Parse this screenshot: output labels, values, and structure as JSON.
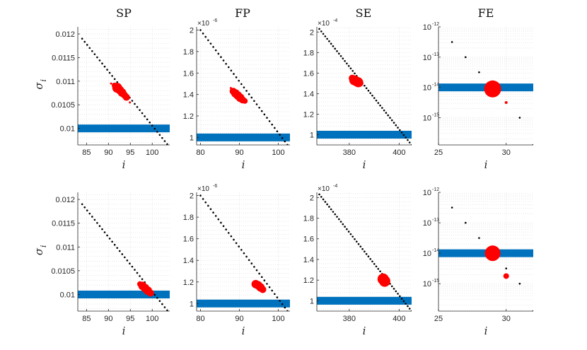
{
  "colors": {
    "threshold": "#0072BD",
    "highlight": "#FF0000",
    "sequence": "#000000",
    "grid": "#d9d9d9",
    "axis": "#262626"
  },
  "column_titles": [
    "SP",
    "FP",
    "SE",
    "FE"
  ],
  "xlabel": "i",
  "ylabel": "σ",
  "ylabel_sub": "i",
  "multipliers": {
    "FP": {
      "base": "×10",
      "exp": "-6"
    },
    "SE": {
      "base": "×10",
      "exp": "-4"
    }
  },
  "chart_data": [
    {
      "id": "row1-SP",
      "type": "scatter",
      "title": "SP",
      "yscale": "linear",
      "xlim": [
        83,
        104
      ],
      "ylim": [
        0.00965,
        0.01215
      ],
      "yscale_factor": 1,
      "xticks": [
        85,
        90,
        95,
        100
      ],
      "xtick_labels": [
        "85",
        "90",
        "95",
        "100"
      ],
      "yticks": [
        0.01,
        0.0105,
        0.011,
        0.0115,
        0.012
      ],
      "ytick_labels": [
        "0.01",
        "0.0105",
        "0.011",
        "0.0115",
        "0.012"
      ],
      "xlabel": "i",
      "show_ylabel": true,
      "diagonal": {
        "x_start": 84,
        "y_start": 0.0119,
        "x_end": 104,
        "y_end": 0.0096,
        "count": 36
      },
      "threshold": {
        "y": 0.01,
        "x_start": 83,
        "x_end": 104
      },
      "highlights": [
        {
          "x": 90.6,
          "y": 0.01095,
          "size": 1.5
        },
        {
          "x": 91.4,
          "y": 0.01091,
          "size": 4
        },
        {
          "x": 92.0,
          "y": 0.01086,
          "size": 7
        },
        {
          "x": 92.6,
          "y": 0.01081,
          "size": 6
        },
        {
          "x": 93.1,
          "y": 0.01076,
          "size": 6
        },
        {
          "x": 93.6,
          "y": 0.01071,
          "size": 5
        },
        {
          "x": 94.1,
          "y": 0.01066,
          "size": 5
        },
        {
          "x": 94.9,
          "y": 0.01055,
          "size": 1.5
        }
      ]
    },
    {
      "id": "row1-FP",
      "type": "scatter",
      "title": "FP",
      "yscale": "linear",
      "xlim": [
        79,
        103
      ],
      "ylim": [
        0.93,
        2.03
      ],
      "yscale_factor": 1e-06,
      "xticks": [
        80,
        90,
        100
      ],
      "xtick_labels": [
        "80",
        "90",
        "100"
      ],
      "yticks": [
        1,
        1.2,
        1.4,
        1.6,
        1.8,
        2
      ],
      "ytick_labels": [
        "1",
        "1.2",
        "1.4",
        "1.6",
        "1.8",
        "2"
      ],
      "xlabel": "i",
      "show_ylabel": false,
      "multiplier": "FP",
      "diagonal": {
        "x_start": 80,
        "y_start": 2.0,
        "x_end": 103,
        "y_end": 0.9,
        "count": 36
      },
      "threshold": {
        "y": 1.0,
        "x_start": 79,
        "x_end": 103
      },
      "highlights": [
        {
          "x": 87.8,
          "y": 1.46,
          "size": 1.5
        },
        {
          "x": 88.4,
          "y": 1.43,
          "size": 5
        },
        {
          "x": 89.0,
          "y": 1.41,
          "size": 6
        },
        {
          "x": 89.6,
          "y": 1.39,
          "size": 6
        },
        {
          "x": 90.2,
          "y": 1.37,
          "size": 6
        },
        {
          "x": 90.8,
          "y": 1.35,
          "size": 5
        },
        {
          "x": 91.4,
          "y": 1.34,
          "size": 4
        }
      ]
    },
    {
      "id": "row1-SE",
      "type": "scatter",
      "title": "SE",
      "yscale": "linear",
      "xlim": [
        367,
        405
      ],
      "ylim": [
        0.9,
        2.05
      ],
      "yscale_factor": 0.0001,
      "xticks": [
        380,
        400
      ],
      "xtick_labels": [
        "380",
        "400"
      ],
      "yticks": [
        1,
        1.2,
        1.4,
        1.6,
        1.8,
        2
      ],
      "ytick_labels": [
        "1",
        "1.2",
        "1.4",
        "1.6",
        "1.8",
        "2"
      ],
      "xlabel": "i",
      "show_ylabel": false,
      "multiplier": "SE",
      "diagonal": {
        "x_start": 368,
        "y_start": 2.03,
        "x_end": 405,
        "y_end": 0.9,
        "count": 48
      },
      "threshold": {
        "y": 1.0,
        "x_start": 367,
        "x_end": 405
      },
      "highlights": [
        {
          "x": 381.2,
          "y": 1.55,
          "size": 5
        },
        {
          "x": 382.0,
          "y": 1.53,
          "size": 7
        },
        {
          "x": 382.8,
          "y": 1.52,
          "size": 7
        },
        {
          "x": 383.6,
          "y": 1.51,
          "size": 7
        },
        {
          "x": 384.2,
          "y": 1.5,
          "size": 5
        }
      ]
    },
    {
      "id": "row1-FE",
      "type": "scatter",
      "title": "FE",
      "yscale": "log",
      "xlim": [
        25,
        32
      ],
      "ylim": [
        -15.9,
        -12
      ],
      "yscale_factor": 1,
      "xticks": [
        25,
        30
      ],
      "xtick_labels": [
        "25",
        "30"
      ],
      "yticks": [
        -15,
        -14,
        -13,
        -12
      ],
      "ytick_labels": [
        "10",
        "10",
        "10",
        "10"
      ],
      "ytick_exps": [
        "-15",
        "-14",
        "-13",
        "-12"
      ],
      "xlabel": "i",
      "show_ylabel": false,
      "points": [
        {
          "x": 26,
          "y": -12.5
        },
        {
          "x": 27,
          "y": -13.0
        },
        {
          "x": 28,
          "y": -13.5
        },
        {
          "x": 29,
          "y": -14.0
        },
        {
          "x": 30,
          "y": -14.5
        },
        {
          "x": 31,
          "y": -15.0
        },
        {
          "x": 32,
          "y": -15.9
        }
      ],
      "threshold": {
        "y": -14.0,
        "x_start": 25,
        "x_end": 32
      },
      "highlights": [
        {
          "x": 29,
          "y": -14.05,
          "size": 12
        },
        {
          "x": 30,
          "y": -14.5,
          "size": 2
        }
      ]
    },
    {
      "id": "row2-SP",
      "type": "scatter",
      "title": "SP",
      "yscale": "linear",
      "xlim": [
        83,
        104
      ],
      "ylim": [
        0.00965,
        0.01215
      ],
      "yscale_factor": 1,
      "xticks": [
        85,
        90,
        95,
        100
      ],
      "xtick_labels": [
        "85",
        "90",
        "95",
        "100"
      ],
      "yticks": [
        0.01,
        0.0105,
        0.011,
        0.0115,
        0.012
      ],
      "ytick_labels": [
        "0.01",
        "0.0105",
        "0.011",
        "0.0115",
        "0.012"
      ],
      "xlabel": "i",
      "show_ylabel": true,
      "diagonal": {
        "x_start": 84,
        "y_start": 0.0119,
        "x_end": 104,
        "y_end": 0.0096,
        "count": 36
      },
      "threshold": {
        "y": 0.01,
        "x_start": 83,
        "x_end": 104
      },
      "highlights": [
        {
          "x": 97.2,
          "y": 0.01022,
          "size": 4
        },
        {
          "x": 97.8,
          "y": 0.01018,
          "size": 6
        },
        {
          "x": 98.4,
          "y": 0.01013,
          "size": 6
        },
        {
          "x": 99.0,
          "y": 0.01008,
          "size": 6
        },
        {
          "x": 99.6,
          "y": 0.01003,
          "size": 5
        }
      ]
    },
    {
      "id": "row2-FP",
      "type": "scatter",
      "title": "FP",
      "yscale": "linear",
      "xlim": [
        79,
        103
      ],
      "ylim": [
        0.93,
        2.03
      ],
      "yscale_factor": 1e-06,
      "xticks": [
        80,
        90,
        100
      ],
      "xtick_labels": [
        "80",
        "90",
        "100"
      ],
      "yticks": [
        1,
        1.2,
        1.4,
        1.6,
        1.8,
        2
      ],
      "ytick_labels": [
        "1",
        "1.2",
        "1.4",
        "1.6",
        "1.8",
        "2"
      ],
      "xlabel": "i",
      "show_ylabel": false,
      "multiplier": "FP",
      "diagonal": {
        "x_start": 80,
        "y_start": 2.0,
        "x_end": 103,
        "y_end": 0.9,
        "count": 36
      },
      "threshold": {
        "y": 1.0,
        "x_start": 79,
        "x_end": 103
      },
      "highlights": [
        {
          "x": 94.2,
          "y": 1.18,
          "size": 6
        },
        {
          "x": 94.8,
          "y": 1.17,
          "size": 6
        },
        {
          "x": 95.4,
          "y": 1.15,
          "size": 6
        },
        {
          "x": 96.0,
          "y": 1.13,
          "size": 5
        }
      ]
    },
    {
      "id": "row2-SE",
      "type": "scatter",
      "title": "SE",
      "yscale": "linear",
      "xlim": [
        367,
        405
      ],
      "ylim": [
        0.9,
        2.05
      ],
      "yscale_factor": 0.0001,
      "xticks": [
        380,
        400
      ],
      "xtick_labels": [
        "380",
        "400"
      ],
      "yticks": [
        1,
        1.2,
        1.4,
        1.6,
        1.8,
        2
      ],
      "ytick_labels": [
        "1",
        "1.2",
        "1.4",
        "1.6",
        "1.8",
        "2"
      ],
      "xlabel": "i",
      "show_ylabel": false,
      "multiplier": "SE",
      "diagonal": {
        "x_start": 368,
        "y_start": 2.03,
        "x_end": 405,
        "y_end": 0.9,
        "count": 48
      },
      "threshold": {
        "y": 1.0,
        "x_start": 367,
        "x_end": 405
      },
      "highlights": [
        {
          "x": 393.6,
          "y": 1.21,
          "size": 8
        },
        {
          "x": 394.2,
          "y": 1.19,
          "size": 8
        }
      ]
    },
    {
      "id": "row2-FE",
      "type": "scatter",
      "title": "FE",
      "yscale": "log",
      "xlim": [
        25,
        32
      ],
      "ylim": [
        -15.9,
        -12
      ],
      "yscale_factor": 1,
      "xticks": [
        25,
        30
      ],
      "xtick_labels": [
        "25",
        "30"
      ],
      "yticks": [
        -15,
        -14,
        -13,
        -12
      ],
      "ytick_labels": [
        "10",
        "10",
        "10",
        "10"
      ],
      "ytick_exps": [
        "-15",
        "-14",
        "-13",
        "-12"
      ],
      "xlabel": "i",
      "show_ylabel": false,
      "points": [
        {
          "x": 26,
          "y": -12.5
        },
        {
          "x": 27,
          "y": -13.0
        },
        {
          "x": 28,
          "y": -13.5
        },
        {
          "x": 29,
          "y": -14.0
        },
        {
          "x": 30,
          "y": -14.5
        },
        {
          "x": 31,
          "y": -15.0
        },
        {
          "x": 32,
          "y": -15.9
        }
      ],
      "threshold": {
        "y": -14.0,
        "x_start": 25,
        "x_end": 32
      },
      "highlights": [
        {
          "x": 29,
          "y": -14.0,
          "size": 11
        },
        {
          "x": 30,
          "y": -14.75,
          "size": 4
        }
      ]
    }
  ]
}
